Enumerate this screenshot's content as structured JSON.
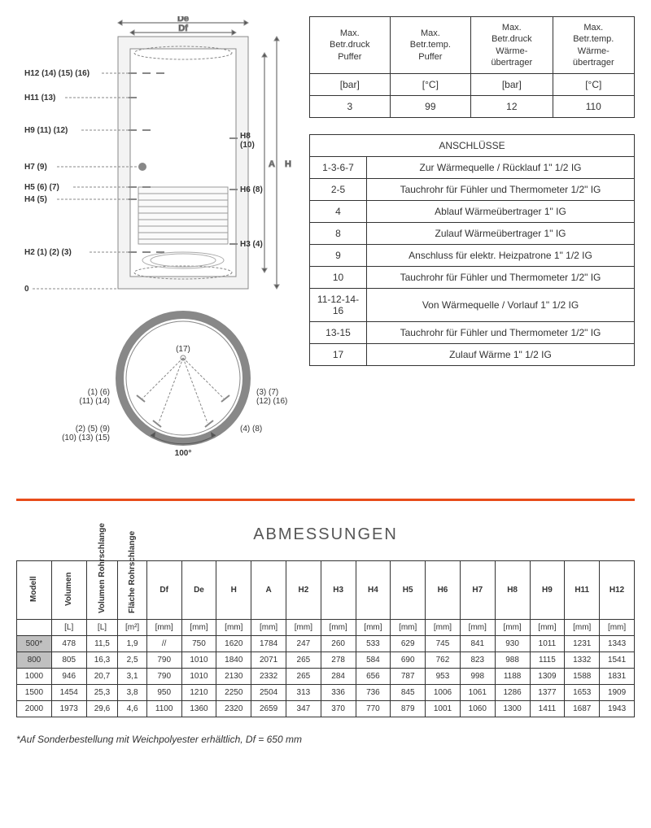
{
  "diagram": {
    "labels": {
      "De": "De",
      "Df": "Df",
      "H": "H",
      "A": "A",
      "zero": "0",
      "sev": "(17)",
      "H12": "H12 (14) (15) (16)",
      "H11": "H11 (13)",
      "H9": "H9 (11) (12)",
      "H7": "H7 (9)",
      "H5": "H5 (6) (7)",
      "H4": "H4 (5)",
      "H2": "H2 (1) (2) (3)",
      "H8": "H8\n(10)",
      "H6": "H6 (8)",
      "H3": "H3 (4)",
      "circ17": "(17)",
      "circL1": "(1) (6)\n(11) (14)",
      "circL2": "(2) (5) (9)\n(10) (13) (15)",
      "circR1": "(3) (7)\n(12) (16)",
      "circR2": "(4) (8)",
      "angle": "100°"
    }
  },
  "specs": {
    "headers": [
      "Max.\nBetr.druck\nPuffer",
      "Max.\nBetr.temp.\nPuffer",
      "Max.\nBetr.druck\nWärme-\nübertrager",
      "Max.\nBetr.temp.\nWärme-\nübertrager"
    ],
    "units": [
      "[bar]",
      "[°C]",
      "[bar]",
      "[°C]"
    ],
    "values": [
      "3",
      "99",
      "12",
      "110"
    ]
  },
  "connections": {
    "title": "ANSCHLÜSSE",
    "rows": [
      {
        "key": "1-3-6-7",
        "desc": "Zur Wärmequelle / Rücklauf 1\" 1/2 IG"
      },
      {
        "key": "2-5",
        "desc": "Tauchrohr für Fühler und Thermometer 1/2\" IG"
      },
      {
        "key": "4",
        "desc": "Ablauf Wärmeübertrager 1\" IG"
      },
      {
        "key": "8",
        "desc": "Zulauf Wärmeübertrager 1\" IG"
      },
      {
        "key": "9",
        "desc": "Anschluss für elektr. Heizpatrone 1\" 1/2 IG"
      },
      {
        "key": "10",
        "desc": "Tauchrohr für Fühler und Thermometer 1/2\" IG"
      },
      {
        "key": "11-12-14-16",
        "desc": "Von Wärmequelle / Vorlauf 1\" 1/2 IG"
      },
      {
        "key": "13-15",
        "desc": "Tauchrohr für Fühler und Thermometer 1/2\" IG"
      },
      {
        "key": "17",
        "desc": "Zulauf Wärme 1\" 1/2 IG"
      }
    ]
  },
  "dimensions": {
    "title": "ABMESSUNGEN",
    "headers": [
      "Modell",
      "Volumen",
      "Volumen Rohrschlange",
      "Fläche Rohrschlange",
      "Df",
      "De",
      "H",
      "A",
      "H2",
      "H3",
      "H4",
      "H5",
      "H6",
      "H7",
      "H8",
      "H9",
      "H11",
      "H12"
    ],
    "units": [
      "",
      "[L]",
      "[L]",
      "[m²]",
      "[mm]",
      "[mm]",
      "[mm]",
      "[mm]",
      "[mm]",
      "[mm]",
      "[mm]",
      "[mm]",
      "[mm]",
      "[mm]",
      "[mm]",
      "[mm]",
      "[mm]",
      "[mm]"
    ],
    "rows": [
      {
        "hl": true,
        "cells": [
          "500*",
          "478",
          "11,5",
          "1,9",
          "//",
          "750",
          "1620",
          "1784",
          "247",
          "260",
          "533",
          "629",
          "745",
          "841",
          "930",
          "1011",
          "1231",
          "1343"
        ]
      },
      {
        "hl": true,
        "cells": [
          "800",
          "805",
          "16,3",
          "2,5",
          "790",
          "1010",
          "1840",
          "2071",
          "265",
          "278",
          "584",
          "690",
          "762",
          "823",
          "988",
          "1115",
          "1332",
          "1541"
        ]
      },
      {
        "hl": false,
        "cells": [
          "1000",
          "946",
          "20,7",
          "3,1",
          "790",
          "1010",
          "2130",
          "2332",
          "265",
          "284",
          "656",
          "787",
          "953",
          "998",
          "1188",
          "1309",
          "1588",
          "1831"
        ]
      },
      {
        "hl": false,
        "cells": [
          "1500",
          "1454",
          "25,3",
          "3,8",
          "950",
          "1210",
          "2250",
          "2504",
          "313",
          "336",
          "736",
          "845",
          "1006",
          "1061",
          "1286",
          "1377",
          "1653",
          "1909"
        ]
      },
      {
        "hl": false,
        "cells": [
          "2000",
          "1973",
          "29,6",
          "4,6",
          "1100",
          "1360",
          "2320",
          "2659",
          "347",
          "370",
          "770",
          "879",
          "1001",
          "1060",
          "1300",
          "1411",
          "1687",
          "1943"
        ]
      }
    ]
  },
  "footnote": "*Auf Sonderbestellung mit Weichpolyester erhältlich, Df = 650 mm"
}
